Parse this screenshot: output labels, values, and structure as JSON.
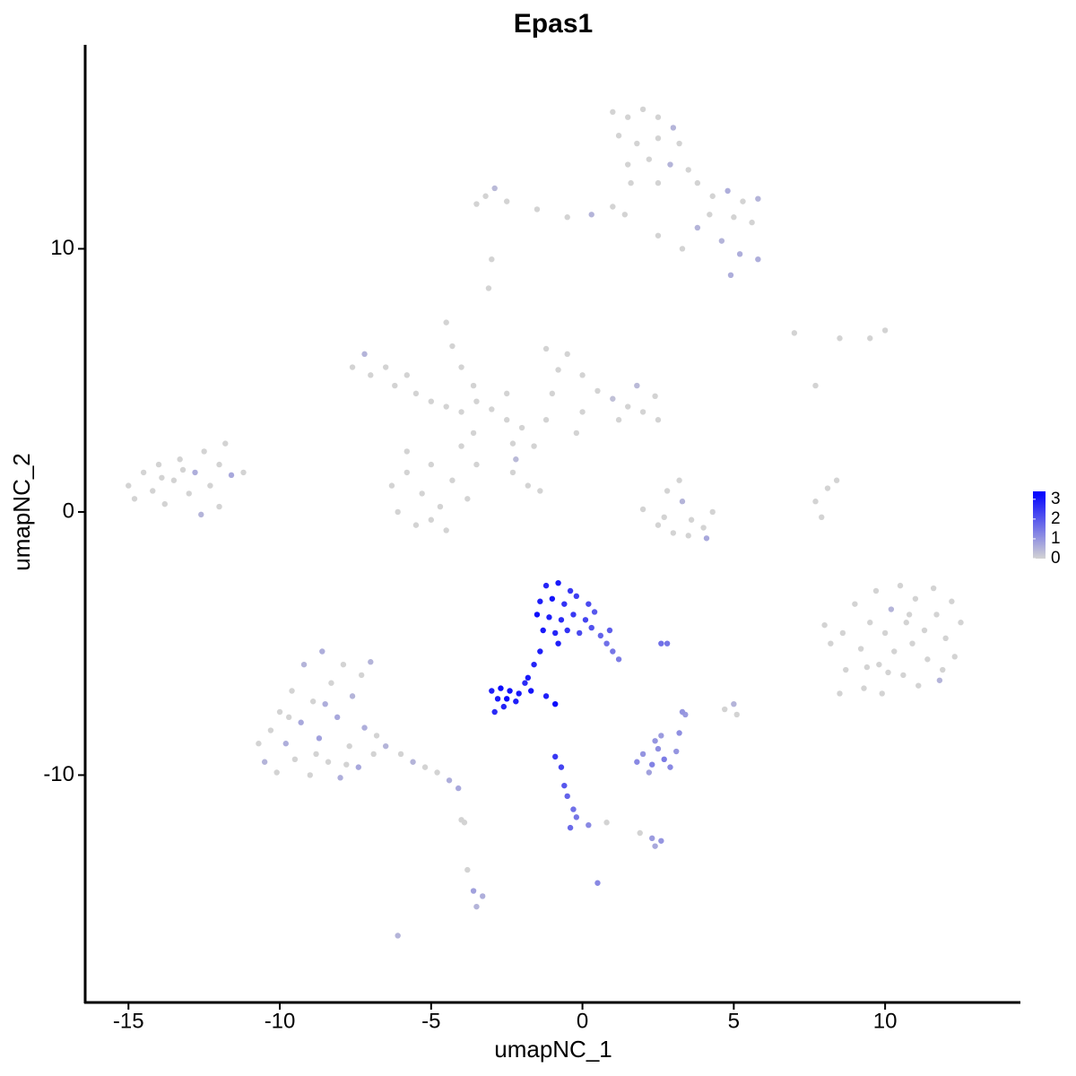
{
  "chart_data": {
    "type": "scatter",
    "title": "Epas1",
    "x_label": "umapNC_1",
    "y_label": "umapNC_2",
    "xlim": [
      -16.43,
      14.47
    ],
    "ylim": [
      -18.64,
      17.75
    ],
    "xticks": [
      -15,
      -10,
      -5,
      0,
      5,
      10
    ],
    "yticks": [
      -10,
      0,
      10
    ],
    "color_low": "#d3d3d3",
    "color_high": "#0000ff",
    "clim": [
      0,
      3.4
    ],
    "cticks": [
      0,
      1,
      2,
      3
    ],
    "x": [
      -15,
      -14.8,
      -14.5,
      -14.2,
      -14,
      -13.8,
      -13.5,
      -13.3,
      -13,
      -12.8,
      -12.5,
      -12.3,
      -12,
      -12,
      -11.8,
      -11.6,
      -11.2,
      -12.6,
      -13.9,
      -13.2,
      1,
      1.5,
      2,
      2.5,
      3,
      1.2,
      1.8,
      2.5,
      3.2,
      1.5,
      2.2,
      2.9,
      3.5,
      1.6,
      2.5,
      3.8,
      4.3,
      4.8,
      5.3,
      5.8,
      4.2,
      5,
      5.6,
      3.8,
      4.6,
      5.2,
      5.8,
      4.9,
      1.4,
      1.0,
      0.3,
      -0.5,
      -1.5,
      -2.5,
      -3.2,
      -3.5,
      -2.9,
      2.5,
      3.3,
      -3,
      -3.1,
      -7.6,
      -7.2,
      -7,
      -6.5,
      -6.2,
      -5.8,
      -5.5,
      -5,
      -4.5,
      -4,
      -3.5,
      -3,
      -2.5,
      -4.5,
      -4.3,
      -4,
      -3.6,
      -6.3,
      -6.1,
      -5.8,
      -5.5,
      -5.3,
      -5,
      -4.7,
      -4.5,
      -4.3,
      -4,
      -3.8,
      -3.5,
      -3.6,
      -5.8,
      -5.0,
      -2.5,
      -2,
      -1.6,
      -1.2,
      -1,
      -1.2,
      -0.5,
      -0.8,
      0,
      0.5,
      1,
      1.5,
      2,
      2.5,
      2.4,
      1.8,
      1.2,
      0,
      -0.2,
      -2.2,
      -2.3,
      -1.8,
      -1.4,
      -2.3,
      2,
      2.5,
      3,
      3.5,
      4,
      4.3,
      2.8,
      3.2,
      3.3,
      2.7,
      4.1,
      3.6,
      7.7,
      8.1,
      8.4,
      7.9,
      7.0,
      8.5,
      9.5,
      10,
      7.7,
      8.0,
      8.2,
      8.6,
      8.7,
      8.5,
      9.0,
      9.2,
      9.3,
      9.5,
      9.7,
      9.8,
      9.9,
      10.0,
      10.2,
      10.3,
      10.5,
      10.6,
      10.7,
      10.9,
      11.0,
      11.1,
      11.3,
      11.4,
      11.6,
      11.7,
      11.9,
      12.0,
      12.2,
      12.3,
      12.5,
      11.8,
      10.1,
      9.4,
      10.8,
      -10.7,
      -10.5,
      -10.3,
      -10.1,
      -10,
      -9.8,
      -9.6,
      -9.5,
      -9.3,
      -9.2,
      -9.0,
      -8.9,
      -8.7,
      -8.6,
      -8.4,
      -8.3,
      -8.1,
      -8.0,
      -7.9,
      -7.7,
      -7.6,
      -7.4,
      -7.3,
      -7.2,
      -7.0,
      -6.9,
      -8.8,
      -9.7,
      -8.5,
      -7.8,
      -6.8,
      -6.5,
      -6.0,
      -5.6,
      -5.2,
      -4.8,
      -4.4,
      -4.1,
      -4.0,
      -3.8,
      -3.6,
      -3.3,
      -3.5,
      -6.1,
      -1.2,
      -0.8,
      -0.4,
      -1.4,
      -1.0,
      -0.6,
      -0.2,
      0.2,
      -1.5,
      -1.1,
      -0.7,
      -0.3,
      0.1,
      0.4,
      -1.3,
      -0.9,
      -0.5,
      -0.1,
      0.3,
      -0.8,
      0.6,
      0.8,
      1.0,
      1.2,
      0.9,
      -1.4,
      -1.6,
      -1.8,
      -1.9,
      -3.0,
      -2.7,
      -2.4,
      -2.1,
      -2.8,
      -2.5,
      -2.2,
      -2.6,
      -2.9,
      -1.7,
      -1.2,
      -0.9,
      -0.9,
      -0.7,
      -0.6,
      -0.5,
      -0.3,
      -0.2,
      -0.4,
      0.2,
      0.8,
      0.5,
      2.6,
      2.8,
      5.0,
      5.1,
      4.7,
      3.3,
      3.4,
      1.8,
      2.0,
      2.3,
      2.5,
      2.7,
      2.4,
      2.9,
      3.1,
      2.2,
      2.6,
      3.2,
      1.9,
      2.3,
      2.6,
      2.4,
      -3.9
    ],
    "y": [
      1.0,
      0.5,
      1.5,
      0.8,
      1.8,
      0.3,
      1.2,
      2.0,
      0.7,
      1.5,
      2.3,
      1.0,
      1.8,
      0.2,
      2.6,
      1.4,
      1.5,
      -0.1,
      1.3,
      1.6,
      15.2,
      15,
      15.3,
      15,
      14.6,
      14.3,
      14,
      14.2,
      14,
      13.2,
      13.4,
      13.2,
      13,
      12.5,
      12.5,
      12.5,
      12,
      12.2,
      11.8,
      11.9,
      11.3,
      11.2,
      11,
      10.8,
      10.3,
      9.8,
      9.6,
      9,
      11.3,
      11.6,
      11.3,
      11.2,
      11.5,
      11.8,
      12,
      11.7,
      12.3,
      10.5,
      10,
      9.6,
      8.5,
      5.5,
      6.0,
      5.2,
      5.5,
      4.8,
      5.2,
      4.5,
      4.2,
      4.0,
      3.8,
      4.2,
      3.9,
      3.5,
      7.2,
      6.3,
      5.5,
      4.8,
      1.0,
      0.0,
      1.5,
      -0.5,
      0.7,
      1.8,
      0.2,
      -0.7,
      1.2,
      2.5,
      0.5,
      1.8,
      3.0,
      2.3,
      -0.3,
      4.5,
      3.2,
      2.5,
      3.5,
      4.5,
      6.2,
      6.0,
      5.4,
      5.2,
      4.6,
      4.3,
      4.0,
      3.8,
      3.5,
      4.4,
      4.8,
      3.5,
      3.8,
      3.0,
      2.0,
      1.5,
      1.0,
      0.8,
      2.6,
      0.1,
      -0.5,
      -0.8,
      -0.9,
      -0.6,
      0,
      0.8,
      1.2,
      0.4,
      -0.2,
      -1.0,
      -0.3,
      0.4,
      0.9,
      1.2,
      -0.2,
      6.8,
      6.6,
      6.6,
      6.9,
      4.8,
      -4.3,
      -5.0,
      -4.6,
      -6.0,
      -6.9,
      -3.5,
      -5.2,
      -6.7,
      -4.2,
      -3.0,
      -5.8,
      -6.9,
      -4.6,
      -3.7,
      -5.3,
      -2.8,
      -6.2,
      -4.2,
      -5.0,
      -3.3,
      -6.6,
      -4.5,
      -5.6,
      -2.9,
      -3.9,
      -6.0,
      -4.8,
      -3.4,
      -5.5,
      -4.2,
      -6.4,
      -6.1,
      -5.9,
      -3.9,
      -8.8,
      -9.5,
      -8.3,
      -9.9,
      -7.6,
      -8.8,
      -6.8,
      -9.4,
      -8.0,
      -5.8,
      -10.0,
      -7.2,
      -8.6,
      -5.3,
      -9.5,
      -6.5,
      -7.8,
      -10.1,
      -5.8,
      -8.9,
      -7.0,
      -9.7,
      -6.2,
      -8.2,
      -5.7,
      -9.2,
      -9.2,
      -7.8,
      -7.3,
      -9.6,
      -8.5,
      -8.9,
      -9.2,
      -9.5,
      -9.7,
      -9.9,
      -10.2,
      -10.5,
      -11.7,
      -13.6,
      -14.4,
      -14.6,
      -15.0,
      -16.1,
      -2.8,
      -2.7,
      -3.0,
      -3.4,
      -3.3,
      -3.5,
      -3.2,
      -3.5,
      -3.9,
      -4.0,
      -4.1,
      -3.9,
      -4.1,
      -3.8,
      -4.5,
      -4.6,
      -4.5,
      -4.6,
      -4.4,
      -5.0,
      -4.7,
      -5.0,
      -5.3,
      -5.6,
      -4.5,
      -5.3,
      -5.8,
      -6.3,
      -6.5,
      -6.8,
      -6.7,
      -6.8,
      -6.9,
      -7.1,
      -7.1,
      -7.2,
      -7.4,
      -7.6,
      -6.8,
      -7.0,
      -7.3,
      -9.3,
      -9.7,
      -10.4,
      -10.8,
      -11.3,
      -11.6,
      -12.0,
      -11.9,
      -11.8,
      -14.1,
      -5.0,
      -5.0,
      -7.3,
      -7.7,
      -7.5,
      -7.6,
      -7.7,
      -9.5,
      -9.2,
      -9.6,
      -9.0,
      -9.4,
      -8.7,
      -9.7,
      -9.1,
      -9.9,
      -8.5,
      -8.4,
      -12.2,
      -12.4,
      -12.5,
      -12.7,
      -11.8
    ],
    "values": [
      0,
      0,
      0,
      0,
      0,
      0,
      0,
      0,
      0,
      0.6,
      0,
      0,
      0,
      0,
      0,
      0.7,
      0,
      0.5,
      0,
      0,
      0,
      0,
      0,
      0,
      0.5,
      0,
      0,
      0,
      0,
      0,
      0,
      0.5,
      0,
      0,
      0,
      0,
      0,
      0.6,
      0,
      0.5,
      0,
      0,
      0,
      0.5,
      0.5,
      0.6,
      0.6,
      0.6,
      0,
      0,
      0.5,
      0,
      0,
      0,
      0,
      0,
      0.4,
      0,
      0,
      0,
      0,
      0,
      0.5,
      0,
      0,
      0,
      0,
      0,
      0,
      0,
      0,
      0,
      0,
      0,
      0,
      0,
      0,
      0,
      0,
      0,
      0,
      0,
      0,
      0,
      0,
      0,
      0,
      0,
      0,
      0,
      0,
      0,
      0,
      0,
      0,
      0,
      0,
      0,
      0,
      0,
      0,
      0,
      0,
      0.3,
      0,
      0,
      0,
      0,
      0.4,
      0,
      0,
      0,
      0.4,
      0,
      0,
      0,
      0,
      0,
      0,
      0,
      0,
      0,
      0,
      0,
      0,
      0.5,
      0,
      0.7,
      0,
      0,
      0,
      0,
      0,
      0,
      0,
      0,
      0,
      0,
      0,
      0,
      0,
      0,
      0,
      0,
      0,
      0,
      0,
      0,
      0,
      0,
      0,
      0.5,
      0,
      0,
      0,
      0,
      0,
      0,
      0,
      0,
      0,
      0,
      0,
      0,
      0,
      0,
      0,
      0,
      0.5,
      0,
      0,
      0,
      0,
      0.5,
      0,
      0,
      0,
      0.6,
      0,
      0,
      0.7,
      0.5,
      0,
      0,
      0.8,
      0.6,
      0,
      0,
      0.7,
      0.6,
      0,
      0,
      0.5,
      0.7,
      0,
      0.6,
      0.5,
      0,
      0,
      0,
      0.6,
      0,
      0,
      0.5,
      0,
      0.5,
      0,
      0,
      0.6,
      0.7,
      0,
      0,
      0.8,
      0.6,
      0.5,
      0.5,
      2.8,
      3.0,
      2.5,
      2.9,
      3.1,
      2.6,
      2.4,
      2.2,
      3.2,
      2.9,
      2.7,
      2.5,
      2.3,
      2.0,
      3.0,
      2.8,
      2.6,
      2.2,
      2.1,
      2.9,
      1.8,
      1.6,
      1.5,
      1.4,
      1.9,
      2.9,
      2.8,
      3.0,
      2.7,
      2.9,
      3.2,
      3.1,
      3.0,
      3.0,
      3.3,
      2.9,
      2.8,
      2.7,
      3.1,
      2.9,
      3.2,
      2.5,
      2.3,
      2.0,
      1.8,
      1.6,
      1.5,
      1.7,
      1.2,
      0,
      1.2,
      1.6,
      1.5,
      0.5,
      0,
      0,
      1.0,
      0.9,
      1.2,
      1.0,
      1.3,
      1.1,
      1.4,
      1.0,
      1.2,
      1.0,
      0.8,
      0.9,
      1.1,
      0,
      0.9,
      1.0,
      0.7,
      0
    ]
  }
}
